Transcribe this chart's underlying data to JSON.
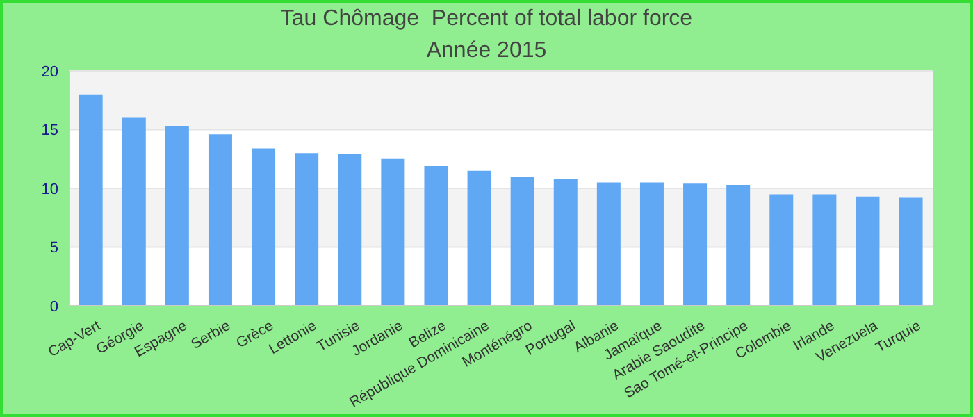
{
  "chart_data": {
    "type": "bar",
    "title": "Tau Chômage  Percent of total labor force",
    "subtitle": "Année 2015",
    "categories": [
      "Cap-Vert",
      "Géorgie",
      "Espagne",
      "Serbie",
      "Grèce",
      "Lettonie",
      "Tunisie",
      "Jordanie",
      "Belize",
      "République Dominicaine",
      "Monténégro",
      "Portugal",
      "Albanie",
      "Jamaïque",
      "Arabie Saoudite",
      "Sao Tomé-et-Principe",
      "Colombie",
      "Irlande",
      "Venezuela",
      "Turquie"
    ],
    "values": [
      18.0,
      16.0,
      15.3,
      14.6,
      13.4,
      13.0,
      12.9,
      12.5,
      11.9,
      11.5,
      11.0,
      10.8,
      10.5,
      10.5,
      10.4,
      10.3,
      9.5,
      9.5,
      9.3,
      9.2
    ],
    "color": "#61a8f4",
    "ylim": [
      0,
      20
    ],
    "yticks": [
      0,
      5,
      10,
      15,
      20
    ],
    "grid": "y"
  }
}
